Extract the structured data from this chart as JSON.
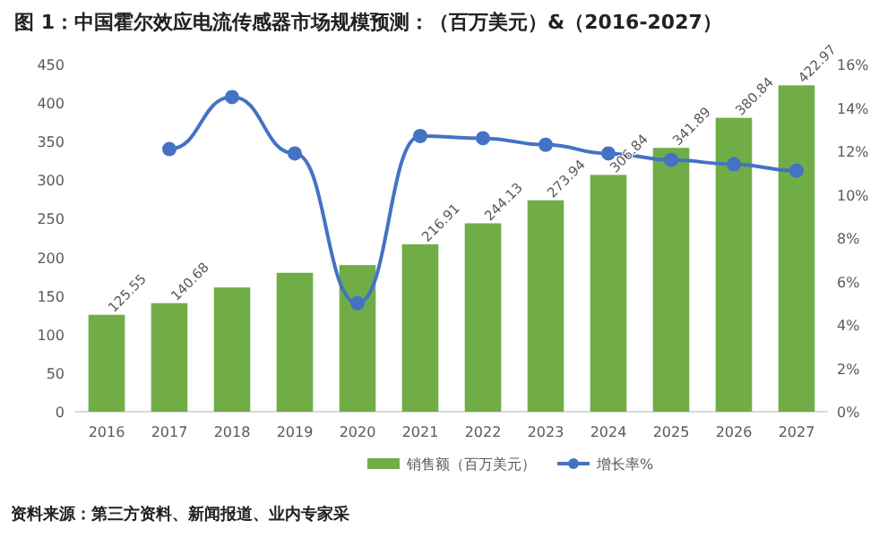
{
  "chart_data": {
    "type": "bar",
    "title": "图 1：中国霍尔效应电流传感器市场规模预测：（百万美元）&（2016-2027）",
    "categories": [
      "2016",
      "2017",
      "2018",
      "2019",
      "2020",
      "2021",
      "2022",
      "2023",
      "2024",
      "2025",
      "2026",
      "2027"
    ],
    "series": [
      {
        "name": "销售额（百万美元）",
        "color": "#70ad47",
        "values": [
          125.55,
          140.68,
          161,
          180,
          190,
          216.91,
          244.13,
          273.94,
          306.84,
          341.89,
          380.84,
          422.97
        ],
        "value_labels": [
          "125.55",
          "140.68",
          null,
          null,
          null,
          "216.91",
          "244.13",
          "273.94",
          "306.84",
          "341.89",
          "380.84",
          "422.97"
        ]
      },
      {
        "type": "line",
        "name": "增长率%",
        "color": "#4472c4",
        "axis": "y2",
        "marker": "circle",
        "values": [
          null,
          12.1,
          14.5,
          11.9,
          5.0,
          12.7,
          12.6,
          12.3,
          11.9,
          11.6,
          11.4,
          11.1
        ]
      }
    ],
    "ylim": [
      0,
      450
    ],
    "yticks": [
      0,
      50,
      100,
      150,
      200,
      250,
      300,
      350,
      400,
      450
    ],
    "y2lim": [
      0,
      16
    ],
    "y2ticks": [
      {
        "value": 0,
        "label": "0%"
      },
      {
        "value": 2,
        "label": "2%"
      },
      {
        "value": 4,
        "label": "4%"
      },
      {
        "value": 6,
        "label": "6%"
      },
      {
        "value": 8,
        "label": "8%"
      },
      {
        "value": 10,
        "label": "10%"
      },
      {
        "value": 12,
        "label": "12%"
      },
      {
        "value": 14,
        "label": "14%"
      },
      {
        "value": 16,
        "label": "16%"
      }
    ],
    "legend": "bottom",
    "annotations": [
      "资料来源：第三方资料、新闻报道、业内专家采"
    ]
  }
}
